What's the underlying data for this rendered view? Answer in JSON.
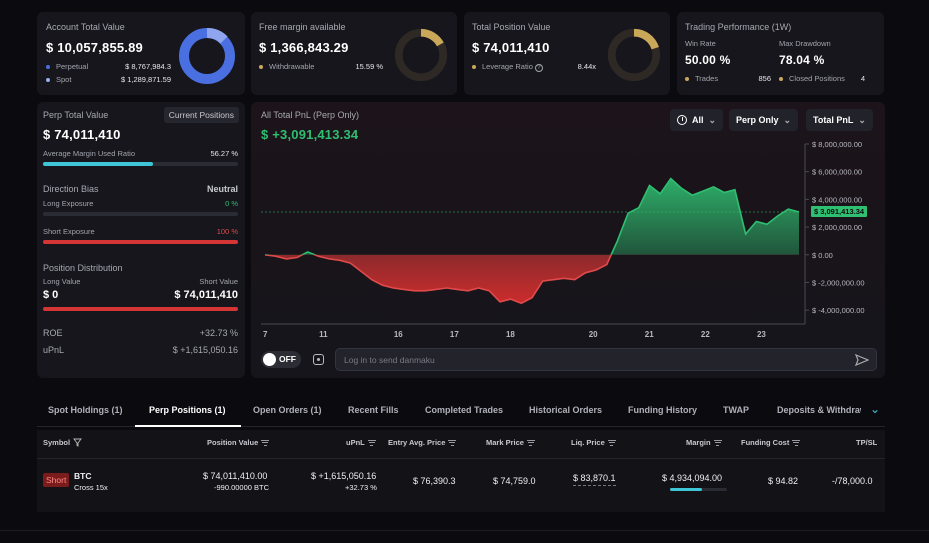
{
  "account_total": {
    "title": "Account Total Value",
    "value": "$ 10,057,855.89",
    "perpetual_label": "Perpetual",
    "perpetual_value": "$ 8,767,984.3",
    "spot_label": "Spot",
    "spot_value": "$ 1,289,871.59"
  },
  "free_margin": {
    "title": "Free margin available",
    "value": "$ 1,366,843.29",
    "withdrawable_label": "Withdrawable",
    "withdrawable_value": "15.59 %"
  },
  "total_position": {
    "title": "Total Position Value",
    "value": "$ 74,011,410",
    "leverage_label": "Leverage Ratio",
    "leverage_value": "8.44x"
  },
  "performance": {
    "title": "Trading Performance (1W)",
    "win_rate_label": "Win Rate",
    "win_rate_value": "50.00 %",
    "drawdown_label": "Max Drawdown",
    "drawdown_value": "78.04 %",
    "trades_label": "Trades",
    "trades_value": "856",
    "closed_label": "Closed Positions",
    "closed_value": "4"
  },
  "perp_panel": {
    "title": "Perp Total Value",
    "current_positions": "Current Positions",
    "value": "$ 74,011,410",
    "margin_label": "Average Margin Used Ratio",
    "margin_value": "56.27 %",
    "margin_fraction": 0.5627,
    "bias_label": "Direction Bias",
    "bias_value": "Neutral",
    "long_exposure_label": "Long Exposure",
    "long_exposure_value": "0 %",
    "short_exposure_label": "Short Exposure",
    "short_exposure_value": "100 %",
    "distribution_label": "Position Distribution",
    "long_value_label": "Long Value",
    "short_value_label": "Short Value",
    "long_value": "$ 0",
    "short_value": "$ 74,011,410",
    "roe_label": "ROE",
    "roe_value": "+32.73 %",
    "upnl_label": "uPnL",
    "upnl_value": "$ +1,615,050.16"
  },
  "pnl_chart": {
    "title": "All Total PnL (Perp Only)",
    "value": "$ +3,091,413.34",
    "filter_all": "All",
    "filter_perp": "Perp Only",
    "filter_total": "Total PnL",
    "current_tag": "$ 3,091,413.34",
    "toggle_label": "OFF",
    "danmaku_placeholder": "Log in to send danmaku"
  },
  "chart_data": {
    "type": "area",
    "x_ticks": [
      "7",
      "11",
      "16",
      "17",
      "18",
      "20",
      "21",
      "22",
      "23"
    ],
    "y_ticks": [
      "$ 8,000,000.00",
      "$ 6,000,000.00",
      "$ 4,000,000.00",
      "$ 2,000,000.00",
      "$ 0.00",
      "$ -2,000,000.00",
      "$ -4,000,000.00"
    ],
    "ylim": [
      -5000000,
      8000000
    ],
    "series": [
      {
        "x": [
          0,
          2,
          4,
          6,
          8,
          10,
          12,
          14,
          16,
          18,
          20,
          22,
          24,
          26,
          28,
          30,
          32,
          34,
          36,
          38,
          40,
          42,
          44,
          46,
          48,
          50,
          52,
          54,
          56,
          58,
          60,
          62,
          64,
          66,
          68,
          70,
          72,
          74,
          76,
          78,
          80,
          82,
          84,
          86,
          88,
          90,
          92,
          94,
          96,
          98,
          100
        ],
        "y": [
          0,
          -100000,
          -300000,
          -200000,
          200000,
          -100000,
          -300000,
          -400000,
          -600000,
          -1200000,
          -1800000,
          -2200000,
          -2400000,
          -2500000,
          -2600000,
          -2600000,
          -2500000,
          -2400000,
          -2500000,
          -2600000,
          -2400000,
          -2600000,
          -3400000,
          -3200000,
          -3500000,
          -3100000,
          -1900000,
          -1800000,
          -1700000,
          -1800000,
          -1300000,
          -1100000,
          -700000,
          1000000,
          3000000,
          3400000,
          5000000,
          4400000,
          5500000,
          4800000,
          4300000,
          4600000,
          4900000,
          4500000,
          4700000,
          1500000,
          2400000,
          2200000,
          2800000,
          3300000,
          3091413
        ]
      }
    ],
    "grid": false
  },
  "tabs": [
    "Spot Holdings (1)",
    "Perp Positions (1)",
    "Open Orders (1)",
    "Recent Fills",
    "Completed Trades",
    "Historical Orders",
    "Funding History",
    "TWAP",
    "Deposits & Withdraw"
  ],
  "table": {
    "headers": {
      "symbol": "Symbol",
      "position_value": "Position Value",
      "upnl": "uPnL",
      "entry": "Entry Avg. Price",
      "mark": "Mark Price",
      "liq": "Liq. Price",
      "margin": "Margin",
      "funding": "Funding Cost",
      "tpsl": "TP/SL"
    },
    "row": {
      "side": "Short",
      "coin": "BTC",
      "leverage": "Cross 15x",
      "position_value": "$ 74,011,410.00",
      "position_size": "-990.00000 BTC",
      "upnl": "$ +1,615,050.16",
      "upnl_pct": "+32.73 %",
      "entry": "$ 76,390.3",
      "mark": "$ 74,759.0",
      "liq": "$ 83,870.1",
      "margin": "$ 4,934,094.00",
      "margin_fraction": 0.56,
      "funding": "$ 94.82",
      "tpsl": "-/78,000.0"
    }
  },
  "colors": {
    "accent_blue": "#4a6fe0",
    "gold": "#c9a85a",
    "green": "#2fbf71",
    "red": "#e04a4a",
    "teal": "#3ec6d6"
  }
}
